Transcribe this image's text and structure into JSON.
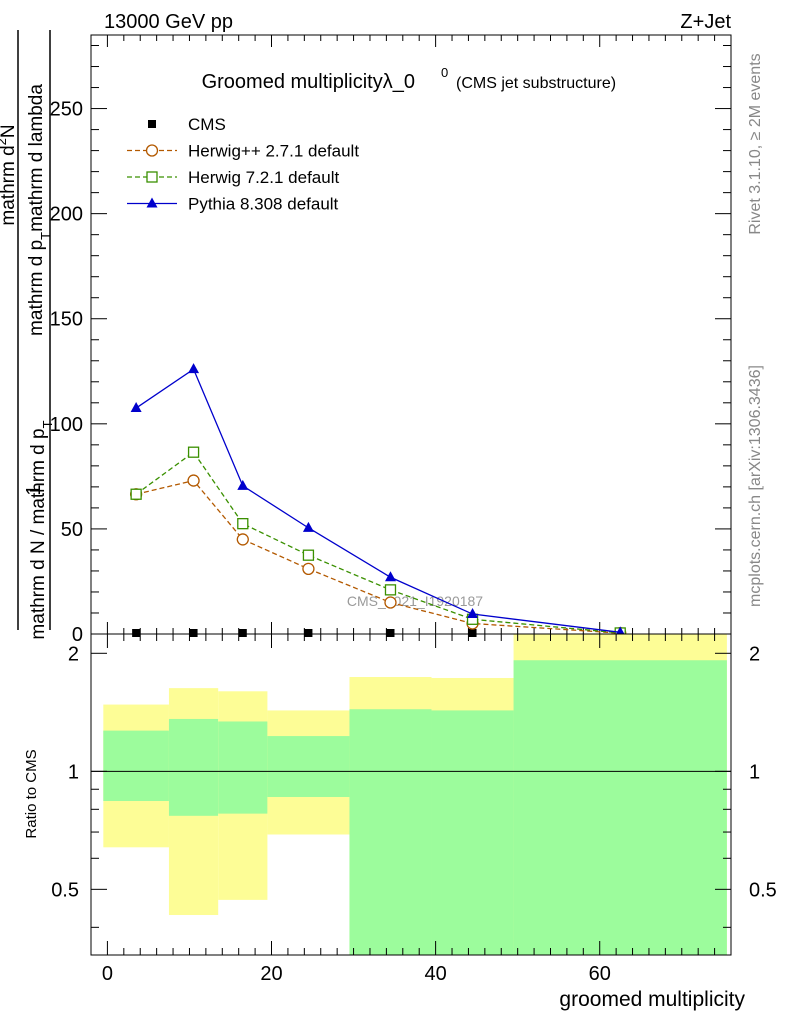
{
  "header": {
    "left": "13000 GeV pp",
    "right": "Z+Jet"
  },
  "side_labels": {
    "rivet": "Rivet 3.1.10, ≥ 2M events",
    "mcplots": "mcplots.cern.ch [arXiv:1306.3436]"
  },
  "watermark": "CMS_2021_I1920187",
  "chart_data": [
    {
      "type": "line",
      "title_main": "Groomed multiplicityλ_0",
      "title_sup": "0",
      "title_sub": "(CMS jet substructure)",
      "ylabel_num": "1",
      "ylabel_num2": "mathrm d",
      "ylabel_num3": "N",
      "ylabel_num_sup": "2",
      "ylabel_den": "mathrm d N / mathrm d p_T mathrm d p_T mathrm d lambda",
      "ylabel_den_parts": [
        "mathrm d N / mathrm d p",
        "T",
        "mathrm d p",
        "T",
        "mathrm d lambda"
      ],
      "xlim": [
        -2,
        76
      ],
      "ylim": [
        0,
        285
      ],
      "yticks": [
        0,
        50,
        100,
        150,
        200,
        250
      ],
      "ytick_labels": [
        "0",
        "50",
        "100",
        "150",
        "200",
        "250"
      ],
      "legend_position": "top-left",
      "series": [
        {
          "name": "CMS",
          "marker": "square-filled",
          "color": "#000000",
          "x": [
            3.5,
            10.5,
            16.5,
            24.5,
            34.5,
            44.5,
            62.5
          ],
          "values": [
            0,
            0,
            0,
            0,
            0,
            0,
            0
          ]
        },
        {
          "name": "Herwig++ 2.7.1 default",
          "marker": "circle-open",
          "color": "#b35900",
          "dash": true,
          "x": [
            3.5,
            10.5,
            16.5,
            24.5,
            34.5,
            44.5,
            62.5
          ],
          "values": [
            66.5,
            73,
            45,
            31,
            15,
            5,
            0.4
          ]
        },
        {
          "name": "Herwig 7.2.1 default",
          "marker": "square-open",
          "color": "#3a9000",
          "dash": true,
          "x": [
            3.5,
            10.5,
            16.5,
            24.5,
            34.5,
            44.5,
            62.5
          ],
          "values": [
            66.5,
            86.5,
            52.5,
            37.5,
            21,
            7,
            0.5
          ]
        },
        {
          "name": "Pythia 8.308 default",
          "marker": "triangle-filled",
          "color": "#0000cc",
          "dash": false,
          "x": [
            3.5,
            10.5,
            16.5,
            24.5,
            34.5,
            44.5,
            62.5
          ],
          "values": [
            107.5,
            126,
            70.5,
            50.5,
            27,
            9.5,
            0.8
          ]
        }
      ]
    },
    {
      "type": "area",
      "ylabel": "Ratio to CMS",
      "xlabel": "groomed multiplicity",
      "xlim": [
        -2,
        76
      ],
      "ylim": [
        0.34,
        2.24
      ],
      "yticks": [
        0.5,
        1,
        2
      ],
      "ytick_labels": [
        "0.5",
        "1",
        "2"
      ],
      "xticks": [
        0,
        20,
        40,
        60
      ],
      "xtick_labels": [
        "0",
        "20",
        "40",
        "60"
      ],
      "reference_line": 1,
      "bands": [
        {
          "x0": -0.5,
          "x1": 7.5,
          "green": [
            0.84,
            1.27
          ],
          "yellow": [
            0.64,
            1.48
          ]
        },
        {
          "x0": 7.5,
          "x1": 13.5,
          "green": [
            0.77,
            1.36
          ],
          "yellow": [
            0.43,
            1.63
          ]
        },
        {
          "x0": 13.5,
          "x1": 19.5,
          "green": [
            0.78,
            1.34
          ],
          "yellow": [
            0.47,
            1.6
          ]
        },
        {
          "x0": 19.5,
          "x1": 29.5,
          "green": [
            0.86,
            1.23
          ],
          "yellow": [
            0.69,
            1.43
          ]
        },
        {
          "x0": 29.5,
          "x1": 39.5,
          "green": [
            0.34,
            1.44
          ],
          "yellow": [
            0.34,
            1.74
          ]
        },
        {
          "x0": 39.5,
          "x1": 49.5,
          "green": [
            0.34,
            1.43
          ],
          "yellow": [
            0.34,
            1.73
          ]
        },
        {
          "x0": 49.5,
          "x1": 75.5,
          "green": [
            0.34,
            1.92
          ],
          "yellow": [
            0.34,
            2.24
          ]
        }
      ]
    }
  ],
  "colors": {
    "band_green": "#9cfc9c",
    "band_yellow": "#fdfd96"
  }
}
